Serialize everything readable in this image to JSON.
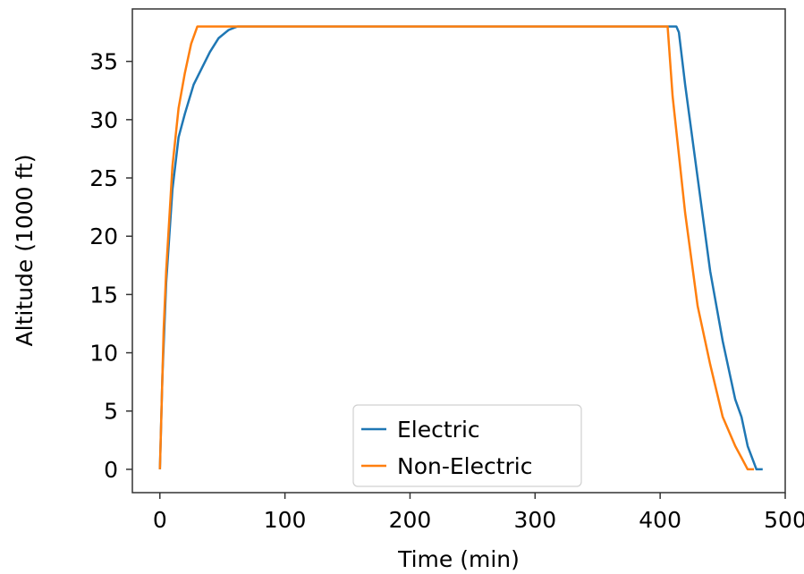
{
  "chart_data": {
    "type": "line",
    "title": "",
    "xlabel": "Time (min)",
    "ylabel": "Altitude (1000 ft)",
    "xlim": [
      -22,
      500
    ],
    "ylim": [
      -2,
      39.5
    ],
    "x_ticks": [
      0,
      100,
      200,
      300,
      400,
      500
    ],
    "y_ticks": [
      0,
      5,
      10,
      15,
      20,
      25,
      30,
      35
    ],
    "x_tick_labels": [
      "0",
      "100",
      "200",
      "300",
      "400",
      "500"
    ],
    "y_tick_labels": [
      "0",
      "5",
      "10",
      "15",
      "20",
      "25",
      "30",
      "35"
    ],
    "grid": false,
    "legend_position": "lower-center",
    "series": [
      {
        "name": "Electric",
        "color": "#1f77b4",
        "x": [
          0,
          2,
          5,
          10,
          15,
          20,
          27,
          33,
          40,
          47,
          55,
          62,
          70,
          100,
          200,
          300,
          400,
          413,
          415,
          420,
          430,
          440,
          450,
          460,
          465,
          470,
          477,
          482
        ],
        "y": [
          0,
          8,
          16,
          24,
          28.5,
          30.5,
          33,
          34.3,
          35.8,
          37,
          37.7,
          38,
          38,
          38,
          38,
          38,
          38,
          38,
          37.5,
          33,
          25,
          17,
          11,
          6,
          4.5,
          2,
          0,
          0
        ]
      },
      {
        "name": "Non-Electric",
        "color": "#ff7f0e",
        "x": [
          0,
          3,
          5,
          10,
          15,
          20,
          25,
          30,
          35,
          100,
          200,
          300,
          400,
          406,
          410,
          420,
          430,
          440,
          450,
          460,
          465,
          470,
          475
        ],
        "y": [
          0,
          12,
          17,
          26,
          31,
          34,
          36.5,
          38,
          38,
          38,
          38,
          38,
          38,
          38,
          32,
          22,
          14,
          9,
          4.5,
          2,
          1,
          0,
          0
        ]
      }
    ]
  }
}
